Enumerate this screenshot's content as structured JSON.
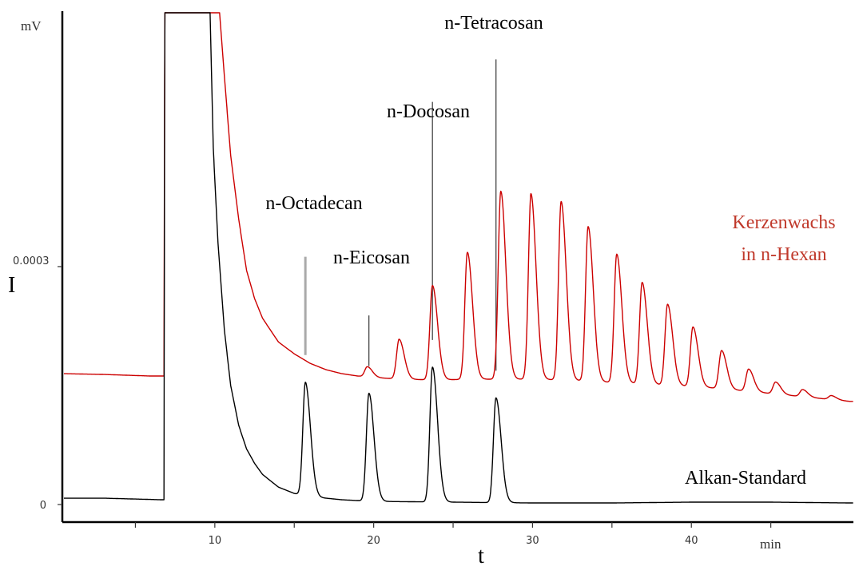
{
  "chart_data": {
    "type": "line",
    "title": "",
    "xlabel": "t",
    "ylabel": "I",
    "x_unit": "min",
    "y_unit": "mV",
    "xlim": [
      0.4,
      50.2
    ],
    "ylim": [
      0,
      0.00062
    ],
    "x_ticks": [
      {
        "value": 5,
        "label": ""
      },
      {
        "value": 10,
        "label": "10"
      },
      {
        "value": 15,
        "label": ""
      },
      {
        "value": 20,
        "label": "20"
      },
      {
        "value": 25,
        "label": ""
      },
      {
        "value": 30,
        "label": "30"
      },
      {
        "value": 35,
        "label": ""
      },
      {
        "value": 40,
        "label": "40"
      },
      {
        "value": 45,
        "label": ""
      }
    ],
    "y_ticks": [
      {
        "value": 0,
        "label": "0"
      },
      {
        "value": 0.0003,
        "label": "0.0003"
      }
    ],
    "peak_labels": [
      {
        "text": "n-Octadecan",
        "x": 15.7
      },
      {
        "text": "n-Eicosan",
        "x": 19.7
      },
      {
        "text": "n-Docosan",
        "x": 23.7
      },
      {
        "text": "n-Tetracosan",
        "x": 27.7
      }
    ],
    "series": [
      {
        "name": "Kerzenwachs in n-Hexan",
        "color": "#cc0000",
        "baseline": [
          [
            0.5,
            0.000165
          ],
          [
            3,
            0.000164
          ],
          [
            6,
            0.000162
          ],
          [
            6.8,
            0.000162
          ],
          [
            6.85,
            0.00062
          ],
          [
            10.3,
            0.00062
          ],
          [
            10.6,
            0.00054
          ],
          [
            11,
            0.00044
          ],
          [
            11.5,
            0.00036
          ],
          [
            12,
            0.000295
          ],
          [
            12.5,
            0.00026
          ],
          [
            13,
            0.000235
          ],
          [
            14,
            0.000205
          ],
          [
            15,
            0.00019
          ],
          [
            16,
            0.000178
          ],
          [
            17,
            0.00017
          ],
          [
            18,
            0.000165
          ],
          [
            19,
            0.000162
          ],
          [
            20,
            0.00016
          ],
          [
            22,
            0.000158
          ],
          [
            24,
            0.000157
          ],
          [
            26,
            0.000158
          ],
          [
            28,
            0.000158
          ],
          [
            30,
            0.000158
          ],
          [
            32,
            0.000157
          ],
          [
            34,
            0.000155
          ],
          [
            36,
            0.000153
          ],
          [
            38,
            0.000151
          ],
          [
            40,
            0.000149
          ],
          [
            42,
            0.000146
          ],
          [
            44,
            0.000142
          ],
          [
            46,
            0.000138
          ],
          [
            48,
            0.000134
          ],
          [
            50,
            0.00013
          ]
        ],
        "peaks": [
          [
            19.6,
            1.3e-05
          ],
          [
            21.6,
            5e-05
          ],
          [
            23.7,
            0.000119
          ],
          [
            25.9,
            0.00016
          ],
          [
            28.0,
            0.000237
          ],
          [
            29.9,
            0.000234
          ],
          [
            31.8,
            0.000225
          ],
          [
            33.5,
            0.000195
          ],
          [
            35.3,
            0.000162
          ],
          [
            36.9,
            0.000128
          ],
          [
            38.5,
            0.000102
          ],
          [
            40.1,
            7.5e-05
          ],
          [
            41.9,
            4.8e-05
          ],
          [
            43.6,
            2.8e-05
          ],
          [
            45.3,
            1.5e-05
          ],
          [
            47.0,
            9e-06
          ],
          [
            48.8,
            5e-06
          ]
        ]
      },
      {
        "name": "Alkan-Standard",
        "color": "#000000",
        "baseline": [
          [
            0.5,
            8e-06
          ],
          [
            3,
            8e-06
          ],
          [
            6.7,
            6e-06
          ],
          [
            6.8,
            6e-06
          ],
          [
            6.85,
            0.00062
          ],
          [
            9.7,
            0.00062
          ],
          [
            9.9,
            0.00045
          ],
          [
            10.2,
            0.00033
          ],
          [
            10.6,
            0.00022
          ],
          [
            11,
            0.00015
          ],
          [
            11.5,
            0.0001
          ],
          [
            12,
            7e-05
          ],
          [
            12.5,
            5.2e-05
          ],
          [
            13,
            3.8e-05
          ],
          [
            14,
            2.2e-05
          ],
          [
            15,
            1.4e-05
          ],
          [
            16,
            1e-05
          ],
          [
            18,
            6e-06
          ],
          [
            20,
            4e-06
          ],
          [
            25,
            3e-06
          ],
          [
            30,
            2e-06
          ],
          [
            35,
            2e-06
          ],
          [
            40,
            3e-06
          ],
          [
            45,
            3e-06
          ],
          [
            50,
            2e-06
          ]
        ],
        "peaks": [
          [
            15.7,
            0.000143
          ],
          [
            19.7,
            0.000136
          ],
          [
            23.7,
            0.00017
          ],
          [
            27.7,
            0.000132
          ]
        ]
      }
    ],
    "series_labels": [
      {
        "lines": [
          "Kerzenwachs",
          "in n-Hexan"
        ],
        "color": "#c0392b"
      },
      {
        "lines": [
          "Alkan-Standard"
        ],
        "color": "#000000"
      }
    ]
  }
}
